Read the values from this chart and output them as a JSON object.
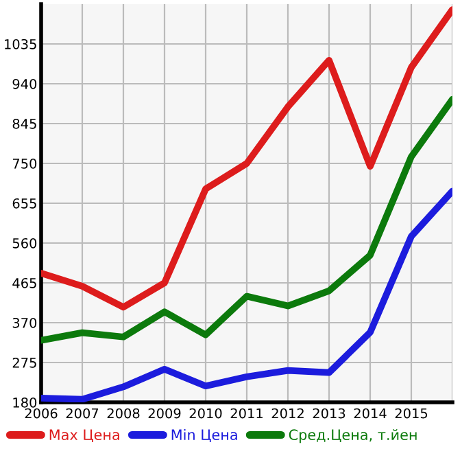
{
  "chart_data": {
    "type": "line",
    "x": [
      2006,
      2007,
      2008,
      2009,
      2010,
      2011,
      2012,
      2013,
      2014,
      2015,
      2016
    ],
    "series": [
      {
        "name": "Max Цена",
        "color": "#dd1c1c",
        "values": [
          488,
          457,
          407,
          465,
          689,
          750,
          885,
          996,
          743,
          979,
          1117
        ]
      },
      {
        "name": "Min Цена",
        "color": "#1c1cdd",
        "values": [
          190,
          187,
          217,
          259,
          219,
          241,
          256,
          251,
          347,
          576,
          684
        ]
      },
      {
        "name": "Сред.Цена, т.йен",
        "color": "#0c7a0c",
        "values": [
          328,
          346,
          336,
          396,
          341,
          433,
          410,
          446,
          531,
          766,
          903
        ]
      }
    ],
    "xlim": [
      2006,
      2016
    ],
    "xticks": [
      2006,
      2007,
      2008,
      2009,
      2010,
      2011,
      2012,
      2013,
      2014,
      2015
    ],
    "ylim": [
      180,
      1130
    ],
    "yticks": [
      180,
      275,
      370,
      465,
      560,
      655,
      750,
      845,
      940,
      1035
    ],
    "grid": true,
    "legend": "bottom",
    "marker": "none",
    "line_style": "solid"
  }
}
